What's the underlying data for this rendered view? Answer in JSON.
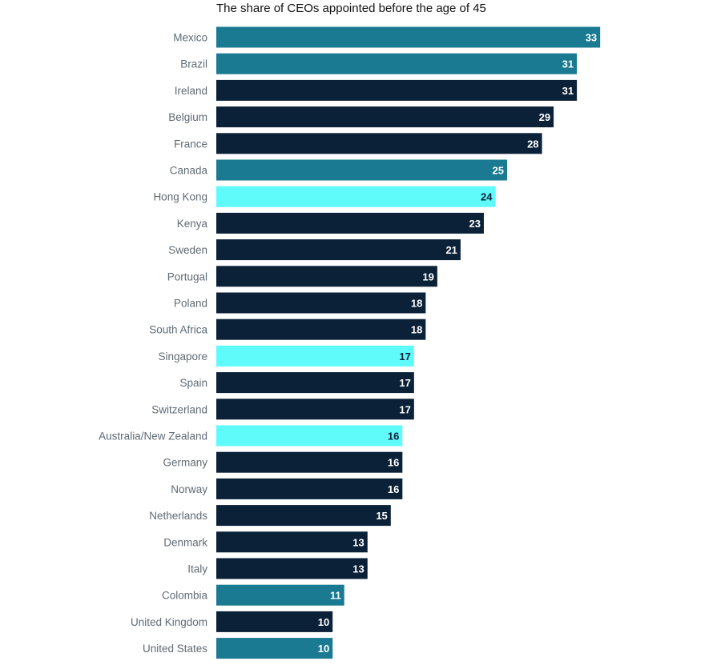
{
  "chart_data": {
    "type": "bar",
    "orientation": "horizontal",
    "title": "The share of CEOs appointed before the age of 45",
    "xlabel": "",
    "ylabel": "",
    "xlim": [
      0,
      33
    ],
    "grid": false,
    "legend": "none",
    "categories": [
      "Mexico",
      "Brazil",
      "Ireland",
      "Belgium",
      "France",
      "Canada",
      "Hong Kong",
      "Kenya",
      "Sweden",
      "Portugal",
      "Poland",
      "South Africa",
      "Singapore",
      "Spain",
      "Switzerland",
      "Australia/New Zealand",
      "Germany",
      "Norway",
      "Netherlands",
      "Denmark",
      "Italy",
      "Colombia",
      "United Kingdom",
      "United States"
    ],
    "values": [
      33,
      31,
      31,
      29,
      28,
      25,
      24,
      23,
      21,
      19,
      18,
      18,
      17,
      17,
      17,
      16,
      16,
      16,
      15,
      13,
      13,
      11,
      10,
      10
    ],
    "groups": [
      "americas",
      "americas",
      "europe",
      "europe",
      "europe",
      "americas",
      "asia-pacific",
      "europe",
      "europe",
      "europe",
      "europe",
      "europe",
      "asia-pacific",
      "europe",
      "europe",
      "asia-pacific",
      "europe",
      "europe",
      "europe",
      "europe",
      "europe",
      "americas",
      "europe",
      "americas"
    ],
    "group_colors": {
      "americas": "#1a7a92",
      "europe": "#0b2138",
      "asia-pacific": "#5ffbfb"
    },
    "label_colors": {
      "americas": "#ffffff",
      "europe": "#ffffff",
      "asia-pacific": "#0b2138"
    }
  }
}
